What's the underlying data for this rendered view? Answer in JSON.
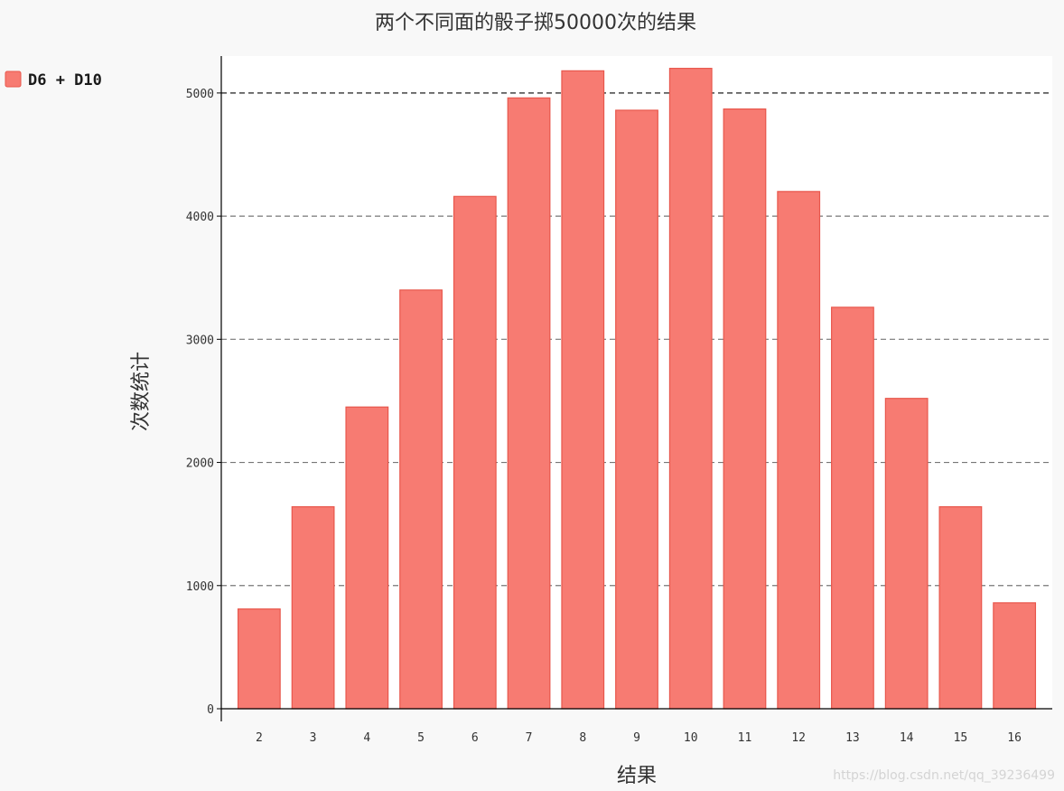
{
  "chart_data": {
    "type": "bar",
    "title": "两个不同面的骰子掷50000次的结果",
    "xlabel": "结果",
    "ylabel": "次数统计",
    "categories": [
      "2",
      "3",
      "4",
      "5",
      "6",
      "7",
      "8",
      "9",
      "10",
      "11",
      "12",
      "13",
      "14",
      "15",
      "16"
    ],
    "series": [
      {
        "name": "D6 + D10",
        "values": [
          810,
          1640,
          2450,
          3400,
          4160,
          4960,
          5180,
          4860,
          5200,
          4870,
          4200,
          3260,
          2520,
          1640,
          860
        ]
      }
    ],
    "ylim": [
      0,
      5300
    ],
    "yticks": [
      0,
      1000,
      2000,
      3000,
      4000,
      5000
    ],
    "grid": "horizontal-dashed",
    "legend": "top-left",
    "colors": {
      "bar_fill": "#f77b72",
      "bar_stroke": "#e8574c",
      "plot_background": "#ffffff",
      "page_background": "#f8f8f8"
    }
  },
  "watermark": "https://blog.csdn.net/qq_39236499"
}
